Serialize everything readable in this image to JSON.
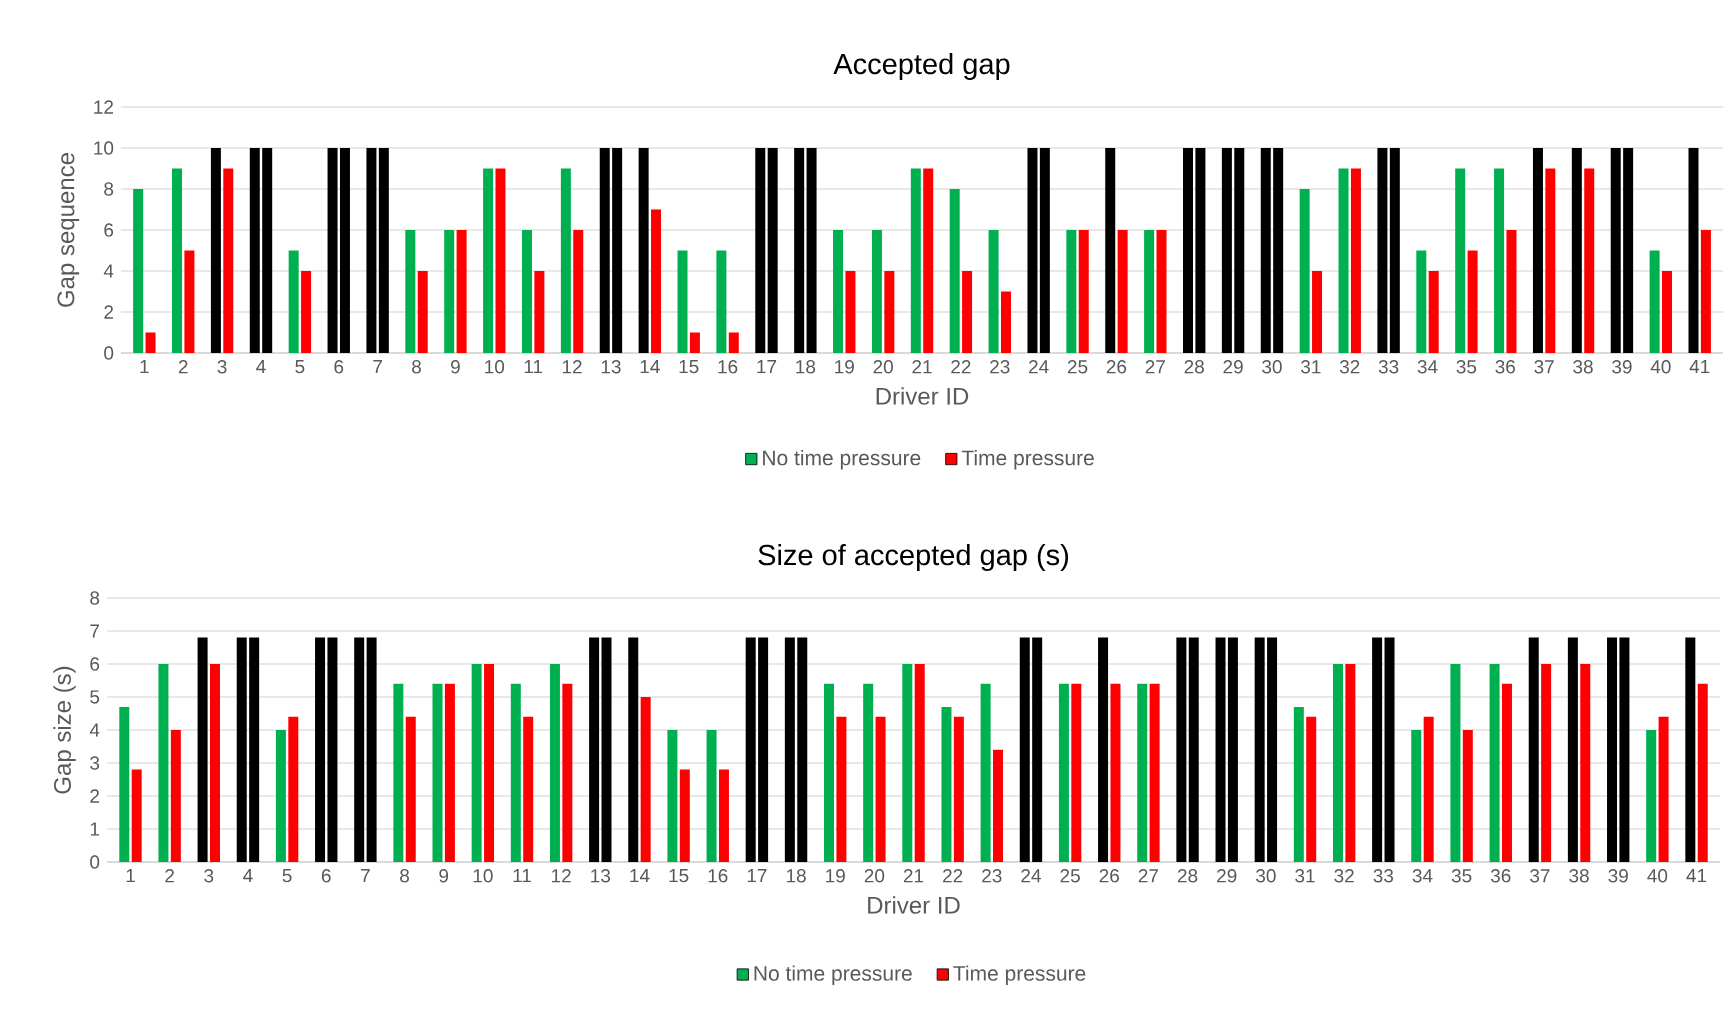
{
  "chart_data": [
    {
      "type": "bar",
      "title": "Accepted gap",
      "xlabel": "Driver ID",
      "ylabel": "Gap sequence",
      "categories": [
        "1",
        "2",
        "3",
        "4",
        "5",
        "6",
        "7",
        "8",
        "9",
        "10",
        "11",
        "12",
        "13",
        "14",
        "15",
        "16",
        "17",
        "18",
        "19",
        "20",
        "21",
        "22",
        "23",
        "24",
        "25",
        "26",
        "27",
        "28",
        "29",
        "30",
        "31",
        "32",
        "33",
        "34",
        "35",
        "36",
        "37",
        "38",
        "39",
        "40",
        "41"
      ],
      "series": [
        {
          "name": "No time pressure",
          "color": "#00b050",
          "values": [
            8,
            9,
            10,
            10,
            5,
            10,
            10,
            6,
            6,
            9,
            6,
            9,
            10,
            10,
            5,
            5,
            10,
            10,
            6,
            6,
            9,
            8,
            6,
            10,
            6,
            10,
            6,
            10,
            10,
            10,
            8,
            9,
            10,
            5,
            9,
            9,
            10,
            10,
            10,
            5,
            10
          ],
          "colors": [
            "#00b050",
            "#00b050",
            "#000000",
            "#000000",
            "#00b050",
            "#000000",
            "#000000",
            "#00b050",
            "#00b050",
            "#00b050",
            "#00b050",
            "#00b050",
            "#000000",
            "#000000",
            "#00b050",
            "#00b050",
            "#000000",
            "#000000",
            "#00b050",
            "#00b050",
            "#00b050",
            "#00b050",
            "#00b050",
            "#000000",
            "#00b050",
            "#000000",
            "#00b050",
            "#000000",
            "#000000",
            "#000000",
            "#00b050",
            "#00b050",
            "#000000",
            "#00b050",
            "#00b050",
            "#00b050",
            "#000000",
            "#000000",
            "#000000",
            "#00b050",
            "#000000"
          ]
        },
        {
          "name": "Time pressure",
          "color": "#ff0000",
          "values": [
            1,
            5,
            9,
            10,
            4,
            10,
            10,
            4,
            6,
            9,
            4,
            6,
            10,
            7,
            1,
            1,
            10,
            10,
            4,
            4,
            9,
            4,
            3,
            10,
            6,
            6,
            6,
            10,
            10,
            10,
            4,
            9,
            10,
            4,
            5,
            6,
            9,
            9,
            10,
            4,
            6
          ],
          "colors": [
            "#ff0000",
            "#ff0000",
            "#ff0000",
            "#000000",
            "#ff0000",
            "#000000",
            "#000000",
            "#ff0000",
            "#ff0000",
            "#ff0000",
            "#ff0000",
            "#ff0000",
            "#000000",
            "#ff0000",
            "#ff0000",
            "#ff0000",
            "#000000",
            "#000000",
            "#ff0000",
            "#ff0000",
            "#ff0000",
            "#ff0000",
            "#ff0000",
            "#000000",
            "#ff0000",
            "#ff0000",
            "#ff0000",
            "#000000",
            "#000000",
            "#000000",
            "#ff0000",
            "#ff0000",
            "#000000",
            "#ff0000",
            "#ff0000",
            "#ff0000",
            "#ff0000",
            "#ff0000",
            "#000000",
            "#ff0000",
            "#ff0000"
          ]
        }
      ],
      "ylim": [
        0,
        12
      ],
      "yticks": [
        0,
        2,
        4,
        6,
        8,
        10,
        12
      ],
      "grid": "y",
      "legend": "bottom"
    },
    {
      "type": "bar",
      "title": "Size of accepted gap (s)",
      "xlabel": "Driver ID",
      "ylabel": "Gap size (s)",
      "categories": [
        "1",
        "2",
        "3",
        "4",
        "5",
        "6",
        "7",
        "8",
        "9",
        "10",
        "11",
        "12",
        "13",
        "14",
        "15",
        "16",
        "17",
        "18",
        "19",
        "20",
        "21",
        "22",
        "23",
        "24",
        "25",
        "26",
        "27",
        "28",
        "29",
        "30",
        "31",
        "32",
        "33",
        "34",
        "35",
        "36",
        "37",
        "38",
        "39",
        "40",
        "41"
      ],
      "series": [
        {
          "name": "No time pressure",
          "color": "#00b050",
          "values": [
            4.7,
            6,
            6.8,
            6.8,
            4,
            6.8,
            6.8,
            5.4,
            5.4,
            6,
            5.4,
            6,
            6.8,
            6.8,
            4,
            4,
            6.8,
            6.8,
            5.4,
            5.4,
            6,
            4.7,
            5.4,
            6.8,
            5.4,
            6.8,
            5.4,
            6.8,
            6.8,
            6.8,
            4.7,
            6,
            6.8,
            4,
            6,
            6,
            6.8,
            6.8,
            6.8,
            4,
            6.8
          ],
          "colors": [
            "#00b050",
            "#00b050",
            "#000000",
            "#000000",
            "#00b050",
            "#000000",
            "#000000",
            "#00b050",
            "#00b050",
            "#00b050",
            "#00b050",
            "#00b050",
            "#000000",
            "#000000",
            "#00b050",
            "#00b050",
            "#000000",
            "#000000",
            "#00b050",
            "#00b050",
            "#00b050",
            "#00b050",
            "#00b050",
            "#000000",
            "#00b050",
            "#000000",
            "#00b050",
            "#000000",
            "#000000",
            "#000000",
            "#00b050",
            "#00b050",
            "#000000",
            "#00b050",
            "#00b050",
            "#00b050",
            "#000000",
            "#000000",
            "#000000",
            "#00b050",
            "#000000"
          ]
        },
        {
          "name": "Time pressure",
          "color": "#ff0000",
          "values": [
            2.8,
            4,
            6,
            6.8,
            4.4,
            6.8,
            6.8,
            4.4,
            5.4,
            6,
            4.4,
            5.4,
            6.8,
            5,
            2.8,
            2.8,
            6.8,
            6.8,
            4.4,
            4.4,
            6,
            4.4,
            3.4,
            6.8,
            5.4,
            5.4,
            5.4,
            6.8,
            6.8,
            6.8,
            4.4,
            6,
            6.8,
            4.4,
            4,
            5.4,
            6,
            6,
            6.8,
            4.4,
            5.4
          ],
          "colors": [
            "#ff0000",
            "#ff0000",
            "#ff0000",
            "#000000",
            "#ff0000",
            "#000000",
            "#000000",
            "#ff0000",
            "#ff0000",
            "#ff0000",
            "#ff0000",
            "#ff0000",
            "#000000",
            "#ff0000",
            "#ff0000",
            "#ff0000",
            "#000000",
            "#000000",
            "#ff0000",
            "#ff0000",
            "#ff0000",
            "#ff0000",
            "#ff0000",
            "#000000",
            "#ff0000",
            "#ff0000",
            "#ff0000",
            "#000000",
            "#000000",
            "#000000",
            "#ff0000",
            "#ff0000",
            "#000000",
            "#ff0000",
            "#ff0000",
            "#ff0000",
            "#ff0000",
            "#ff0000",
            "#000000",
            "#ff0000",
            "#ff0000"
          ]
        }
      ],
      "ylim": [
        0,
        8
      ],
      "yticks": [
        0,
        1,
        2,
        3,
        4,
        5,
        6,
        7,
        8
      ],
      "grid": "y",
      "legend": "bottom"
    }
  ]
}
